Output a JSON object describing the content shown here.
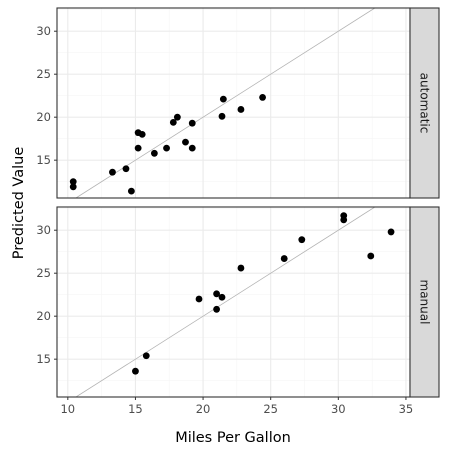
{
  "chart_data": {
    "type": "scatter",
    "xlabel": "Miles Per Gallon",
    "ylabel": "Predicted Value",
    "xlim": [
      9.2,
      35.3
    ],
    "x_ticks": [
      10,
      15,
      20,
      25,
      30,
      35
    ],
    "y_ticks": [
      15,
      20,
      25,
      30
    ],
    "reference_line": "y = x",
    "grid": true,
    "colors": {
      "points": "#000000",
      "reference_line": "#b3b3b3",
      "grid_major": "#ebebeb",
      "grid_minor": "#f5f5f5",
      "strip_fill": "#d9d9d9",
      "panel_border": "#333333"
    },
    "panels": [
      {
        "strip": "automatic",
        "ylim": [
          10.6,
          32.7
        ],
        "points": [
          {
            "x": 10.4,
            "y": 12.5
          },
          {
            "x": 10.4,
            "y": 11.9
          },
          {
            "x": 13.3,
            "y": 13.6
          },
          {
            "x": 14.3,
            "y": 14.0
          },
          {
            "x": 14.7,
            "y": 11.4
          },
          {
            "x": 15.2,
            "y": 16.4
          },
          {
            "x": 15.2,
            "y": 18.2
          },
          {
            "x": 15.5,
            "y": 18.0
          },
          {
            "x": 16.4,
            "y": 15.8
          },
          {
            "x": 17.3,
            "y": 16.4
          },
          {
            "x": 17.8,
            "y": 19.4
          },
          {
            "x": 18.1,
            "y": 20.0
          },
          {
            "x": 18.7,
            "y": 17.1
          },
          {
            "x": 19.2,
            "y": 16.4
          },
          {
            "x": 19.2,
            "y": 19.3
          },
          {
            "x": 21.4,
            "y": 20.1
          },
          {
            "x": 21.5,
            "y": 22.1
          },
          {
            "x": 22.8,
            "y": 20.9
          },
          {
            "x": 24.4,
            "y": 22.3
          }
        ]
      },
      {
        "strip": "manual",
        "ylim": [
          10.6,
          32.7
        ],
        "points": [
          {
            "x": 15.0,
            "y": 13.6
          },
          {
            "x": 15.8,
            "y": 15.4
          },
          {
            "x": 19.7,
            "y": 22.0
          },
          {
            "x": 21.0,
            "y": 20.8
          },
          {
            "x": 21.0,
            "y": 22.6
          },
          {
            "x": 21.4,
            "y": 22.2
          },
          {
            "x": 22.8,
            "y": 25.6
          },
          {
            "x": 26.0,
            "y": 26.7
          },
          {
            "x": 27.3,
            "y": 28.9
          },
          {
            "x": 30.4,
            "y": 31.2
          },
          {
            "x": 30.4,
            "y": 31.7
          },
          {
            "x": 32.4,
            "y": 27.0
          },
          {
            "x": 33.9,
            "y": 29.8
          }
        ]
      }
    ]
  }
}
